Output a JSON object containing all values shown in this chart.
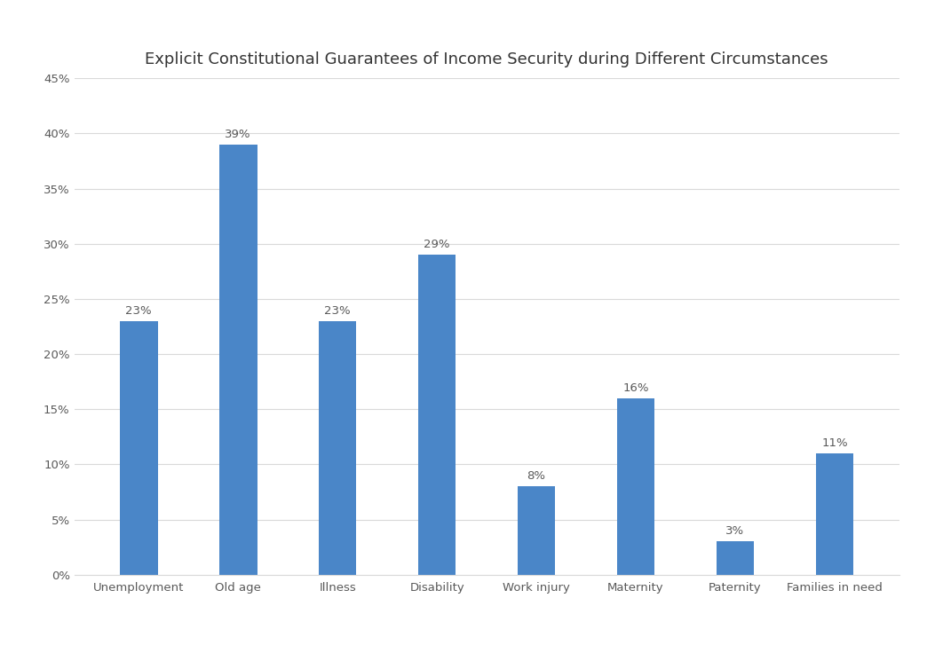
{
  "title": "Explicit Constitutional Guarantees of Income Security during Different Circumstances",
  "categories": [
    "Unemployment",
    "Old age",
    "Illness",
    "Disability",
    "Work injury",
    "Maternity",
    "Paternity",
    "Families in need"
  ],
  "values": [
    23,
    39,
    23,
    29,
    8,
    16,
    3,
    11
  ],
  "labels": [
    "23%",
    "39%",
    "23%",
    "29%",
    "8%",
    "16%",
    "3%",
    "11%"
  ],
  "bar_color": "#4a86c8",
  "ylim": [
    0,
    45
  ],
  "yticks": [
    0,
    5,
    10,
    15,
    20,
    25,
    30,
    35,
    40,
    45
  ],
  "ytick_labels": [
    "0%",
    "5%",
    "10%",
    "15%",
    "20%",
    "25%",
    "30%",
    "35%",
    "40%",
    "45%"
  ],
  "title_fontsize": 13,
  "label_fontsize": 9.5,
  "tick_fontsize": 9.5,
  "background_color": "#ffffff",
  "grid_color": "#d9d9d9",
  "bar_label_color": "#595959"
}
